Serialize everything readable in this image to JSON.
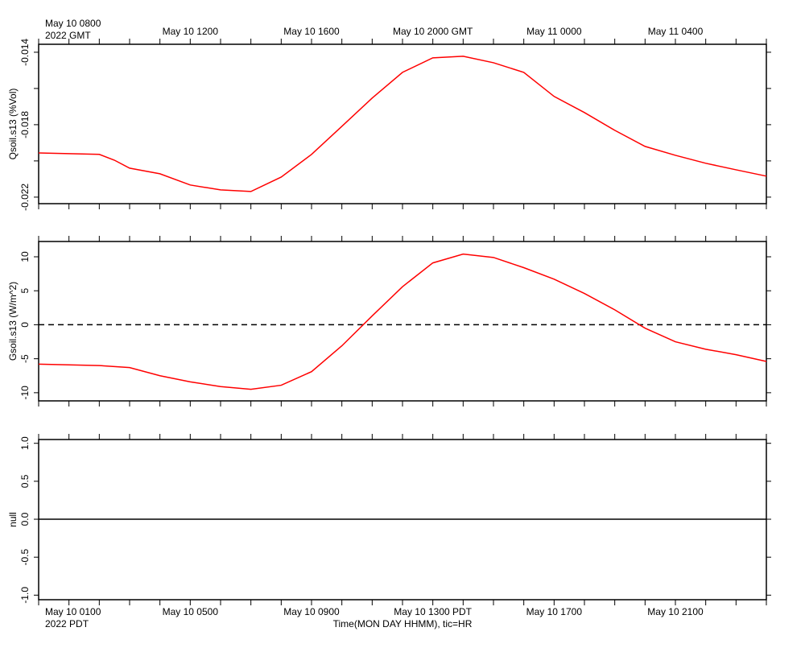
{
  "chart_data": [
    {
      "type": "line",
      "ylabel": "Qsoil.s13 (%Vol)",
      "xlim": [
        0,
        24
      ],
      "ylim": [
        -0.02236,
        -0.01356
      ],
      "yticks": [
        -0.014,
        -0.018,
        -0.022
      ],
      "yminor": [
        -0.016,
        -0.02
      ],
      "xminor": [
        0,
        1,
        2,
        3,
        4,
        5,
        6,
        7,
        8,
        9,
        10,
        11,
        12,
        13,
        14,
        15,
        16,
        17,
        18,
        19,
        20,
        21,
        22,
        23,
        24
      ],
      "x2ticks": [
        {
          "value": 1,
          "label": "May 10 0800"
        },
        {
          "value": 5,
          "label": "May 10 1200"
        },
        {
          "value": 9,
          "label": "May 10 1600"
        },
        {
          "value": 13,
          "label": "May 10 2000 GMT"
        },
        {
          "value": 17,
          "label": "May 11 0000"
        },
        {
          "value": 21,
          "label": "May 11 0400"
        }
      ],
      "x2_year_label": "2022 GMT",
      "x": [
        0,
        1,
        2,
        2.5,
        3,
        4,
        5,
        6,
        7,
        8,
        9,
        10,
        11,
        12,
        13,
        14,
        15,
        16,
        17,
        18,
        19,
        20,
        21,
        22,
        23,
        24
      ],
      "series": [
        {
          "color": "#ff0000",
          "values": [
            -0.01956,
            -0.0196,
            -0.01964,
            -0.01996,
            -0.0204,
            -0.02071,
            -0.02133,
            -0.0216,
            -0.02169,
            -0.02089,
            -0.01964,
            -0.01809,
            -0.01653,
            -0.01511,
            -0.01431,
            -0.01422,
            -0.01458,
            -0.01511,
            -0.01644,
            -0.01733,
            -0.01831,
            -0.0192,
            -0.01969,
            -0.02013,
            -0.02049,
            -0.02084
          ]
        }
      ]
    },
    {
      "type": "line",
      "ylabel": "Gsoil.s13 (W/m^2)",
      "xlim": [
        0,
        24
      ],
      "ylim": [
        -11.2,
        12.25
      ],
      "yticks": [
        10,
        5,
        0,
        -5,
        -10
      ],
      "zero_line": "dashed",
      "x": [
        0,
        1,
        2,
        3,
        4,
        5,
        6,
        7,
        8,
        9,
        10,
        11,
        12,
        13,
        14,
        15,
        16,
        17,
        18,
        19,
        20,
        21,
        22,
        23,
        24
      ],
      "series": [
        {
          "color": "#ff0000",
          "values": [
            -5.8,
            -5.9,
            -6.0,
            -6.3,
            -7.5,
            -8.4,
            -9.1,
            -9.5,
            -8.9,
            -6.9,
            -3.1,
            1.3,
            5.6,
            9.1,
            10.4,
            9.9,
            8.4,
            6.7,
            4.6,
            2.2,
            -0.5,
            -2.5,
            -3.6,
            -4.4,
            -5.4
          ]
        }
      ]
    },
    {
      "type": "line",
      "ylabel": "null",
      "xlim": [
        0,
        24
      ],
      "ylim": [
        -1.06,
        1.05
      ],
      "yticks": [
        {
          "value": 1,
          "label": "1.0"
        },
        {
          "value": 0.5,
          "label": "0.5"
        },
        {
          "value": 0,
          "label": "0.0"
        },
        {
          "value": -0.5,
          "label": "-0.5"
        },
        {
          "value": -1,
          "label": "-1.0"
        }
      ],
      "zero_line": "solid",
      "xticks": [
        {
          "value": 1,
          "label": "May 10 0100"
        },
        {
          "value": 5,
          "label": "May 10 0500"
        },
        {
          "value": 9,
          "label": "May 10 0900"
        },
        {
          "value": 13,
          "label": "May 10 1300 PDT"
        },
        {
          "value": 17,
          "label": "May 10 1700"
        },
        {
          "value": 21,
          "label": "May 10 2100"
        }
      ],
      "x_year_label": "2022 PDT",
      "xlabel": "Time(MON DAY HHMM), tic=HR",
      "series": []
    }
  ]
}
